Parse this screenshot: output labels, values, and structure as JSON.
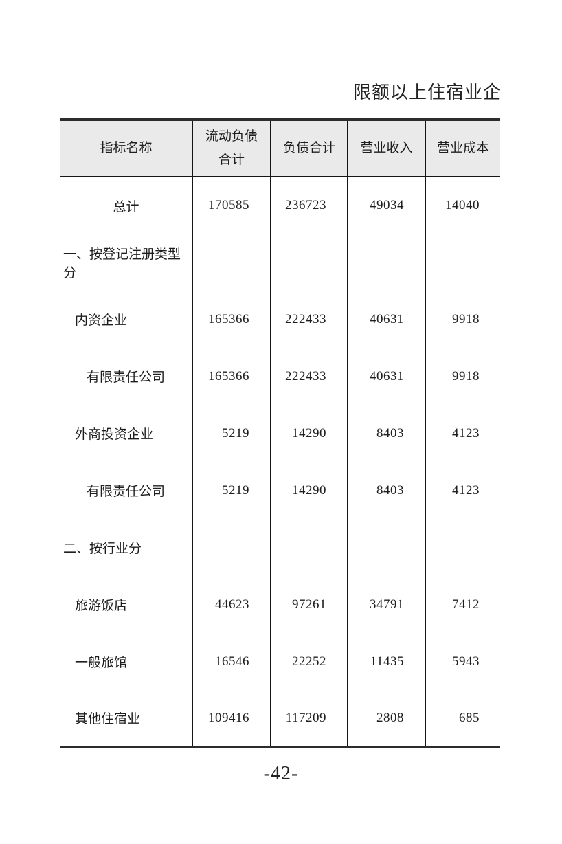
{
  "page": {
    "title": "限额以上住宿业企",
    "page_number": "-42-"
  },
  "table": {
    "headers": [
      "指标名称",
      "流动负债\n合计",
      "负债合计",
      "营业收入",
      "营业成本"
    ],
    "rows": [
      {
        "label": "总计",
        "values": [
          "170585",
          "236723",
          "49034",
          "14040"
        ]
      },
      {
        "label": "一、按登记注册类型分",
        "values": [
          "",
          "",
          "",
          ""
        ]
      },
      {
        "label": "内资企业",
        "values": [
          "165366",
          "222433",
          "40631",
          "9918"
        ]
      },
      {
        "label": "有限责任公司",
        "values": [
          "165366",
          "222433",
          "40631",
          "9918"
        ]
      },
      {
        "label": "外商投资企业",
        "values": [
          "5219",
          "14290",
          "8403",
          "4123"
        ]
      },
      {
        "label": "有限责任公司",
        "values": [
          "5219",
          "14290",
          "8403",
          "4123"
        ]
      },
      {
        "label": "二、按行业分",
        "values": [
          "",
          "",
          "",
          ""
        ]
      },
      {
        "label": "旅游饭店",
        "values": [
          "44623",
          "97261",
          "34791",
          "7412"
        ]
      },
      {
        "label": "一般旅馆",
        "values": [
          "16546",
          "22252",
          "11435",
          "5943"
        ]
      },
      {
        "label": "其他住宿业",
        "values": [
          "109416",
          "117209",
          "2808",
          "685"
        ]
      }
    ]
  },
  "colors": {
    "header_bg": "#eaeaea",
    "rule_dark": "#2c2c2c",
    "rule_thin": "#161616",
    "text": "#1e1e1e"
  }
}
